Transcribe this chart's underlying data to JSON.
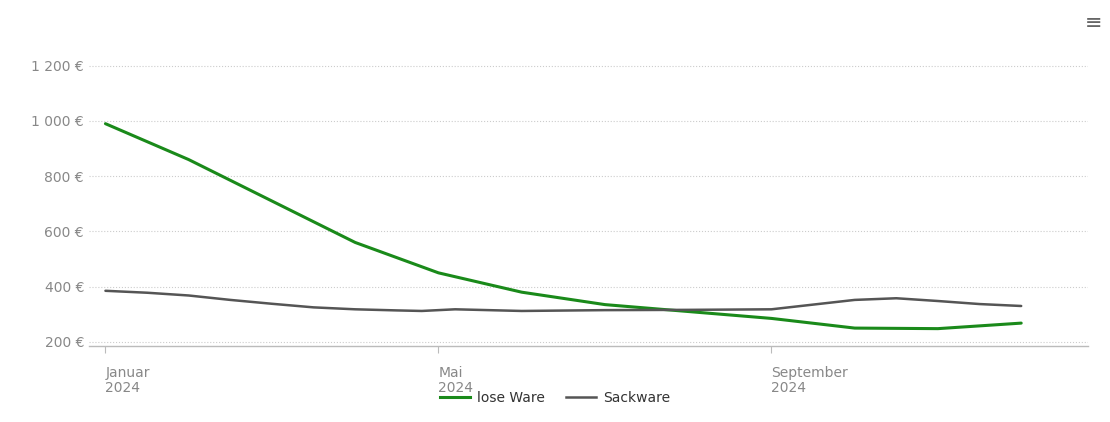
{
  "background_color": "#ffffff",
  "plot_bg_color": "#ffffff",
  "grid_color": "#cccccc",
  "y_ticks": [
    200,
    400,
    600,
    800,
    1000,
    1200
  ],
  "y_tick_labels": [
    "200 €",
    "400 €",
    "600 €",
    "800 €",
    "1 000 €",
    "1 200 €"
  ],
  "ylim": [
    185,
    1285
  ],
  "xlim": [
    -0.2,
    11.8
  ],
  "x_tick_positions": [
    0,
    4,
    8
  ],
  "x_tick_line1": [
    "Januar",
    "Mai",
    "September"
  ],
  "x_tick_line2": [
    "2024",
    "2024",
    "2024"
  ],
  "legend_labels": [
    "lose Ware",
    "Sackware"
  ],
  "lose_ware_color": "#1a8a1a",
  "sackware_color": "#555555",
  "lw_x": [
    0,
    1,
    2,
    3,
    4,
    5,
    6,
    7,
    8,
    9,
    10,
    11
  ],
  "lw_y": [
    990,
    860,
    710,
    560,
    450,
    380,
    335,
    310,
    285,
    250,
    248,
    268
  ],
  "sw_x": [
    0,
    0.5,
    1,
    1.5,
    2,
    2.5,
    3,
    3.5,
    3.8,
    4,
    4.2,
    5,
    6,
    7,
    7.5,
    8,
    8.5,
    9,
    9.5,
    10,
    10.5,
    11
  ],
  "sw_y": [
    385,
    378,
    368,
    352,
    338,
    325,
    318,
    314,
    312,
    315,
    318,
    312,
    315,
    316,
    317,
    318,
    335,
    352,
    358,
    348,
    337,
    330
  ],
  "menu_icon_color": "#666666"
}
